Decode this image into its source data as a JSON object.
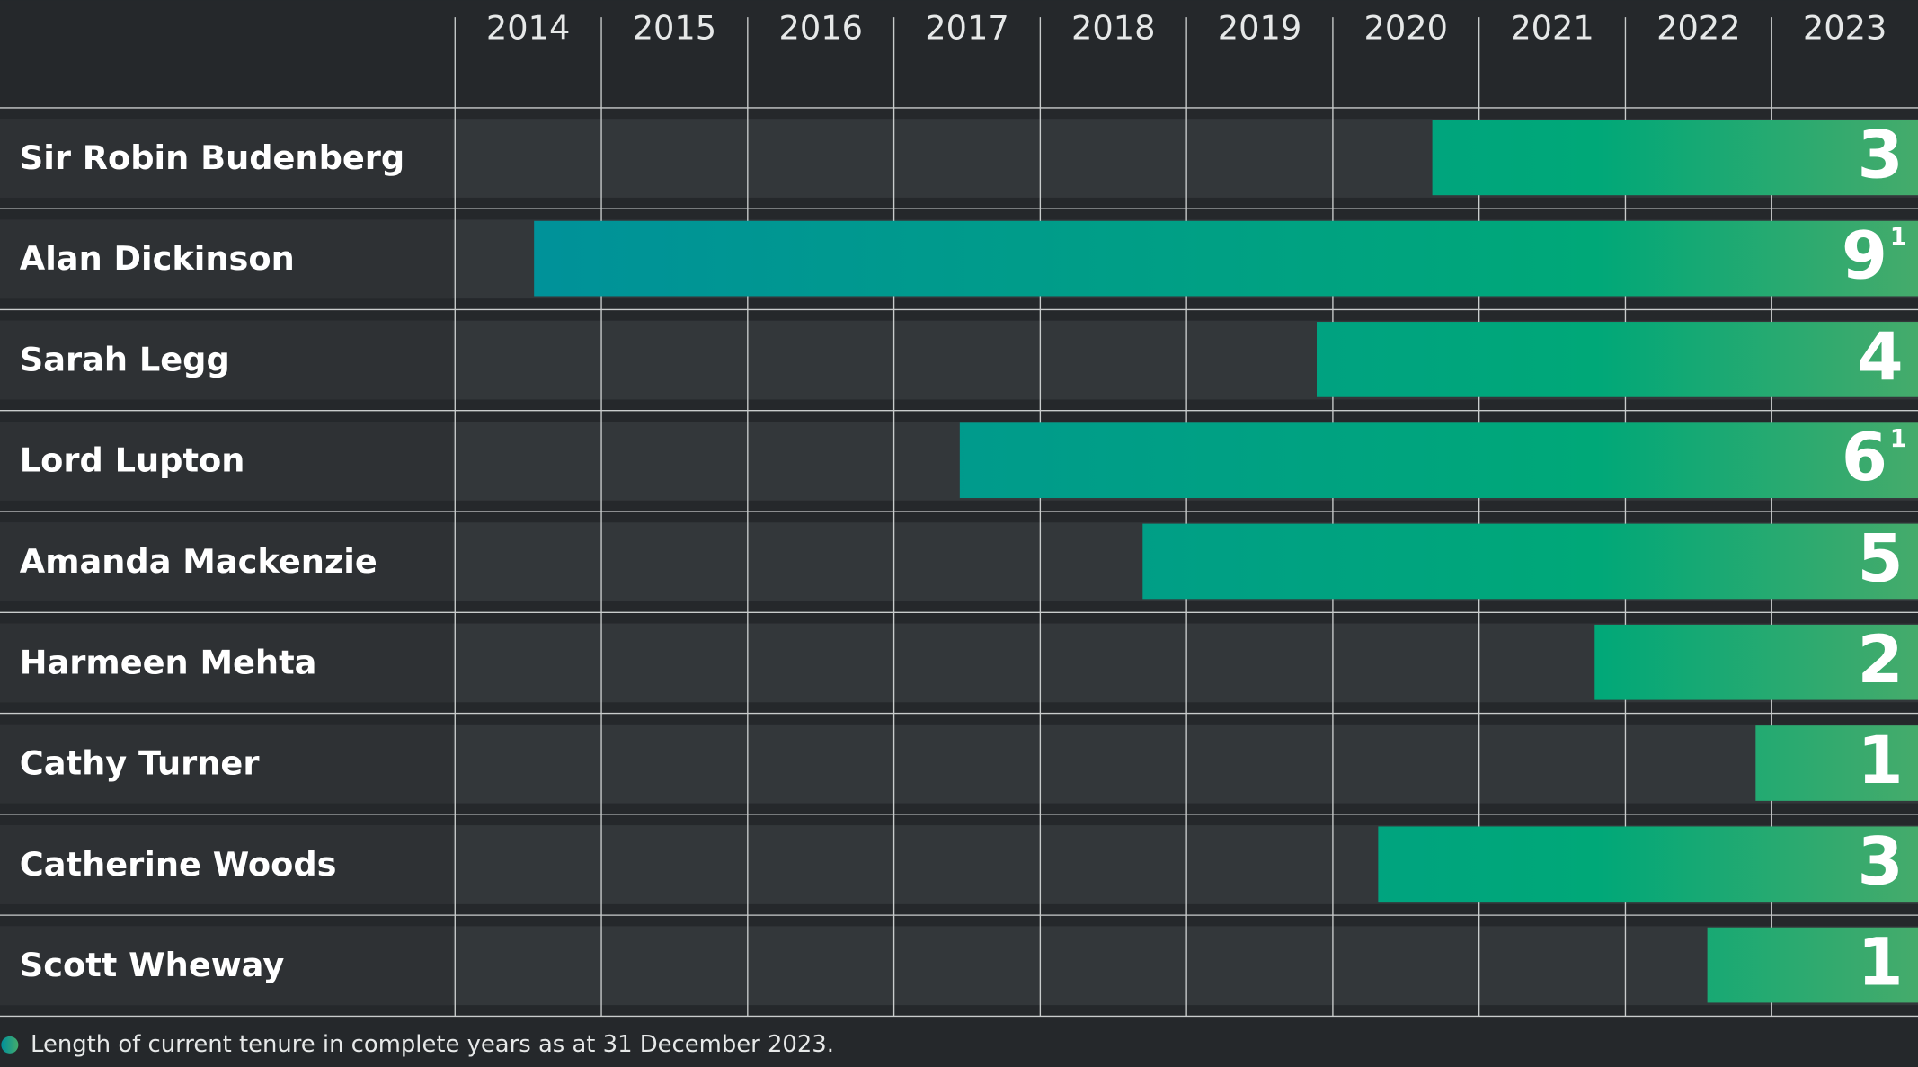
{
  "chart_data": {
    "type": "tenure",
    "categories": [
      "Sir Robin Budenberg",
      "Alan Dickinson",
      "Sarah Legg",
      "Lord Lupton",
      "Amanda Mackenzie",
      "Harmeen Mehta",
      "Cathy Turner",
      "Catherine Woods",
      "Scott Wheway"
    ],
    "start": [
      2020.68,
      2014.54,
      2019.89,
      2017.45,
      2018.7,
      2021.79,
      2022.89,
      2020.31,
      2022.56
    ],
    "end": [
      2024,
      2024,
      2024,
      2024,
      2024,
      2024,
      2024,
      2024,
      2024
    ],
    "values": [
      3,
      9,
      4,
      6,
      5,
      2,
      1,
      3,
      1
    ],
    "notes": [
      null,
      "1",
      null,
      "1",
      null,
      null,
      null,
      null,
      null
    ],
    "xlim": [
      2014,
      2024
    ],
    "xticks": [
      2014,
      2015,
      2016,
      2017,
      2018,
      2019,
      2020,
      2021,
      2022,
      2023
    ],
    "colors": [
      "#00909c",
      "#00a878",
      "#45ab6b"
    ],
    "footnote": "Length of current tenure in complete years as at 31 December 2023."
  }
}
